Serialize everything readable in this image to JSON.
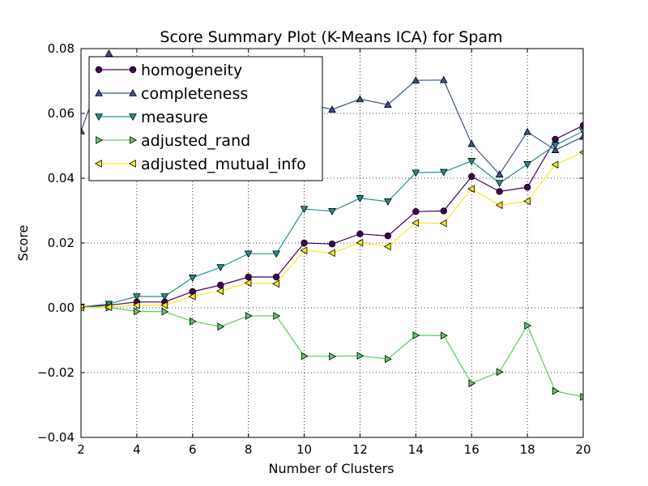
{
  "chart_data": {
    "type": "line",
    "title": "Score Summary Plot (K-Means ICA) for Spam",
    "xlabel": "Number of Clusters",
    "ylabel": "Score",
    "xlim": [
      2,
      20
    ],
    "ylim": [
      -0.04,
      0.08
    ],
    "xticks": [
      2,
      4,
      6,
      8,
      10,
      12,
      14,
      16,
      18,
      20
    ],
    "yticks": [
      -0.04,
      -0.02,
      0.0,
      0.02,
      0.04,
      0.06,
      0.08
    ],
    "ytick_labels": [
      "−0.04",
      "−0.02",
      "0.00",
      "0.02",
      "0.04",
      "0.06",
      "0.08"
    ],
    "grid": true,
    "legend_position": "top-left",
    "x": [
      2,
      3,
      4,
      5,
      6,
      7,
      8,
      9,
      10,
      11,
      12,
      13,
      14,
      15,
      16,
      17,
      18,
      19,
      20
    ],
    "series": [
      {
        "name": "homogeneity",
        "marker": "circle",
        "color": "#440154",
        "values": [
          0.0002,
          0.0008,
          0.0018,
          0.0018,
          0.005,
          0.007,
          0.0095,
          0.0095,
          0.02,
          0.0197,
          0.0228,
          0.0222,
          0.0297,
          0.0299,
          0.0405,
          0.0359,
          0.0372,
          0.052,
          0.0563
        ]
      },
      {
        "name": "completeness",
        "marker": "triangle-up",
        "color": "#3b528b",
        "values": [
          0.0545,
          0.0785,
          0.072,
          0.069,
          0.066,
          0.065,
          0.064,
          0.063,
          0.0632,
          0.0612,
          0.0644,
          0.0627,
          0.0702,
          0.0703,
          0.0506,
          0.0412,
          0.0543,
          0.0487,
          0.0528
        ]
      },
      {
        "name": "measure",
        "marker": "triangle-down",
        "color": "#21918c",
        "values": [
          0.0003,
          0.0012,
          0.0035,
          0.0035,
          0.0093,
          0.0125,
          0.0167,
          0.0167,
          0.0305,
          0.0298,
          0.0338,
          0.0328,
          0.0417,
          0.0419,
          0.0453,
          0.0385,
          0.0443,
          0.0502,
          0.0545
        ]
      },
      {
        "name": "adjusted_rand",
        "marker": "triangle-right",
        "color": "#5ec962",
        "values": [
          0.0002,
          0.0001,
          -0.0011,
          -0.0012,
          -0.0042,
          -0.0058,
          -0.0025,
          -0.0025,
          -0.0149,
          -0.015,
          -0.0148,
          -0.0158,
          -0.0085,
          -0.0086,
          -0.0233,
          -0.0198,
          -0.0055,
          -0.0257,
          -0.0275
        ]
      },
      {
        "name": "adjusted_mutual_info",
        "marker": "triangle-left",
        "color": "#fde725",
        "values": [
          0.0001,
          0.0002,
          0.0008,
          0.0008,
          0.0035,
          0.0052,
          0.0077,
          0.0074,
          0.0177,
          0.0169,
          0.0201,
          0.0189,
          0.0262,
          0.0261,
          0.0367,
          0.0317,
          0.0329,
          0.0442,
          0.048
        ]
      }
    ]
  }
}
